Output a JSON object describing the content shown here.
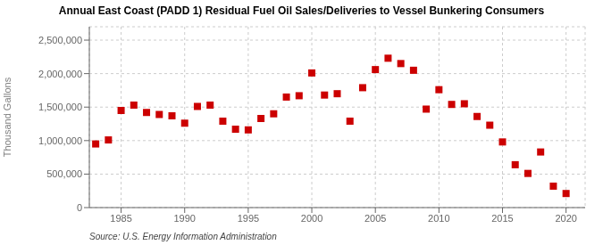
{
  "chart_data": {
    "type": "scatter",
    "title": "Annual East Coast (PADD 1) Residual Fuel Oil Sales/Deliveries to Vessel Bunkering Consumers",
    "ylabel": "Thousand Gallons",
    "source": "Source: U.S. Energy Information Administration",
    "x": [
      1983,
      1984,
      1985,
      1986,
      1987,
      1988,
      1989,
      1990,
      1991,
      1992,
      1993,
      1994,
      1995,
      1996,
      1997,
      1998,
      1999,
      2000,
      2001,
      2002,
      2003,
      2004,
      2005,
      2006,
      2007,
      2008,
      2009,
      2010,
      2011,
      2012,
      2013,
      2014,
      2015,
      2016,
      2017,
      2018,
      2019,
      2020
    ],
    "values": [
      950000,
      1010000,
      1450000,
      1530000,
      1420000,
      1390000,
      1370000,
      1260000,
      1510000,
      1530000,
      1290000,
      1170000,
      1160000,
      1330000,
      1400000,
      1650000,
      1670000,
      2010000,
      1680000,
      1700000,
      1290000,
      1790000,
      2060000,
      2230000,
      2150000,
      2050000,
      1470000,
      1760000,
      1540000,
      1550000,
      1360000,
      1230000,
      980000,
      640000,
      510000,
      830000,
      320000,
      210000
    ],
    "color": "#cc0000",
    "marker": "square",
    "xlim": [
      1982.5,
      2021.5
    ],
    "ylim": [
      0,
      2700000
    ],
    "xticks": [
      1985,
      1990,
      1995,
      2000,
      2005,
      2010,
      2015,
      2020
    ],
    "yticks": [
      0,
      {
        "value": 500000,
        "label": "500,000"
      },
      {
        "value": 1000000,
        "label": "1,000,000"
      },
      {
        "value": 1500000,
        "label": "1,500,000"
      },
      {
        "value": 2000000,
        "label": "2,000,000"
      },
      {
        "value": 2500000,
        "label": "2,500,000"
      }
    ],
    "grid": true
  }
}
